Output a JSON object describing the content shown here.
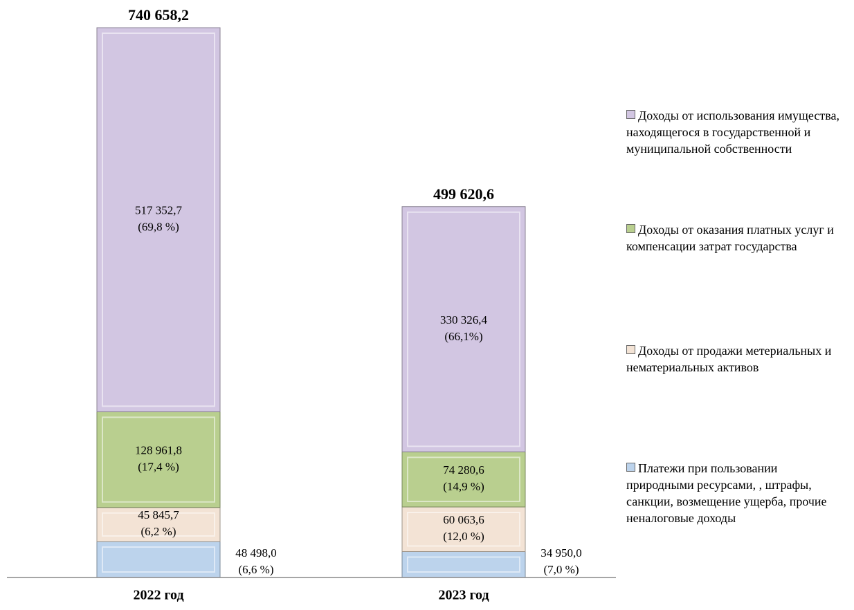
{
  "chart_data": {
    "type": "stacked_bar",
    "categories": [
      "2022 год",
      "2023 год"
    ],
    "series": [
      {
        "name": "Платежи при пользовании природными ресурсами, , штрафы, санкции, возмещение ущерба, прочие неналоговые доходы",
        "color": "#bcd3ec",
        "values": [
          48498.0,
          34950.0
        ],
        "value_labels": [
          "48 498,0",
          "34 950,0"
        ],
        "share_labels": [
          "(6,6 %)",
          "(7,0 %)"
        ]
      },
      {
        "name": "Доходы от продажи метериальных и нематериальных активов",
        "color": "#f3e3d5",
        "values": [
          45845.7,
          60063.6
        ],
        "value_labels": [
          "45 845,7",
          "60 063,6"
        ],
        "share_labels": [
          "(6,2 %)",
          "(12,0 %)"
        ]
      },
      {
        "name": "Доходы от оказания платных услуг и компенсации затрат государства",
        "color": "#b9cf8f",
        "values": [
          128961.8,
          74280.6
        ],
        "value_labels": [
          "128 961,8",
          "74 280,6"
        ],
        "share_labels": [
          "(17,4 %)",
          "(14,9 %)"
        ]
      },
      {
        "name": "Доходы от использования имущества, находящегося в государственной  и муниципальной собственности",
        "color": "#d2c6e2",
        "values": [
          517352.7,
          330326.4
        ],
        "value_labels": [
          "517 352,7",
          "330 326,4"
        ],
        "share_labels": [
          "(69,8 %)",
          "(66,1%)"
        ]
      }
    ],
    "totals": {
      "values": [
        740658.2,
        499620.6
      ],
      "value_labels": [
        "740 658,2",
        "499 620,6"
      ]
    },
    "ylim": [
      0,
      750000
    ]
  }
}
